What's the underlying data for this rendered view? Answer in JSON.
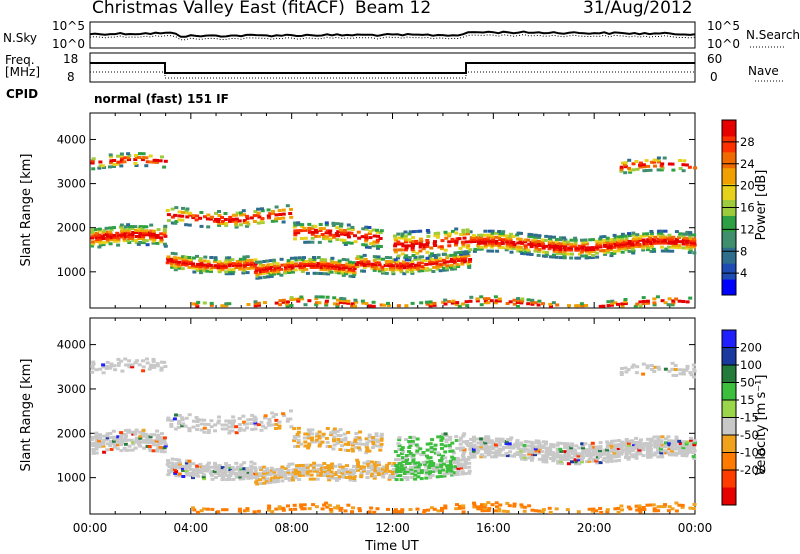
{
  "header": {
    "station": "Christmas Valley East (fitACF)",
    "beam": "Beam 12",
    "date": "31/Aug/2012"
  },
  "top_panels": {
    "nsky_label": "N.Sky",
    "nsky_ticks": [
      "10^5",
      "10^0"
    ],
    "nsearch_label": "N.Search",
    "freq_label": "Freq.",
    "freq_unit": "[MHz]",
    "freq_ticks": [
      "18",
      "8"
    ],
    "nave_ticks": [
      "60",
      "0"
    ],
    "nave_label": "Nave",
    "cpid_label": "CPID",
    "cpid_value": "normal (fast) 151 IF"
  },
  "colors": {
    "power": [
      "#0000ff",
      "#1e4cb4",
      "#2e6e8c",
      "#3f8f6e",
      "#2ea044",
      "#9ccc3c",
      "#e6d21a",
      "#f0a000",
      "#f06a00",
      "#ff3000",
      "#e60000"
    ],
    "velocity": [
      "#2020ff",
      "#1a3aa0",
      "#247a3a",
      "#3cbf3c",
      "#9bd64a",
      "#c8c8c8",
      "#f0a21e",
      "#ff7a00",
      "#ff3c00",
      "#e60000"
    ]
  },
  "chart_data": [
    {
      "type": "heatmap",
      "title": "Power",
      "ylabel": "Slant Range [km]",
      "xlabel": "",
      "ylim": [
        180,
        4600
      ],
      "xlim": [
        "00:00",
        "24:00"
      ],
      "yticks": [
        1000,
        2000,
        3000,
        4000
      ],
      "colorbar": {
        "label": "Power [dB]",
        "ticks": [
          4,
          8,
          12,
          16,
          20,
          24,
          28
        ],
        "range": [
          0,
          32
        ]
      },
      "features": [
        {
          "x": [
            0,
            3
          ],
          "range_center": 1750,
          "width": 450,
          "peak_db": 24
        },
        {
          "x": [
            3,
            15
          ],
          "range_center": 1200,
          "width": 300,
          "peak_db": 28
        },
        {
          "x": [
            15,
            24
          ],
          "range_center": 1700,
          "width": 400,
          "peak_db": 24
        }
      ]
    },
    {
      "type": "heatmap",
      "title": "Velocity",
      "ylabel": "Slant Range [km]",
      "xlabel": "Time UT",
      "ylim": [
        180,
        4600
      ],
      "xlim": [
        "00:00",
        "24:00"
      ],
      "xticks": [
        "00:00",
        "04:00",
        "08:00",
        "12:00",
        "16:00",
        "20:00",
        "00:00"
      ],
      "yticks": [
        1000,
        2000,
        3000,
        4000
      ],
      "colorbar": {
        "label": "Velocity [m s^-1]",
        "ticks": [
          200,
          100,
          50,
          15,
          -15,
          -50,
          -100,
          -200
        ]
      }
    }
  ]
}
